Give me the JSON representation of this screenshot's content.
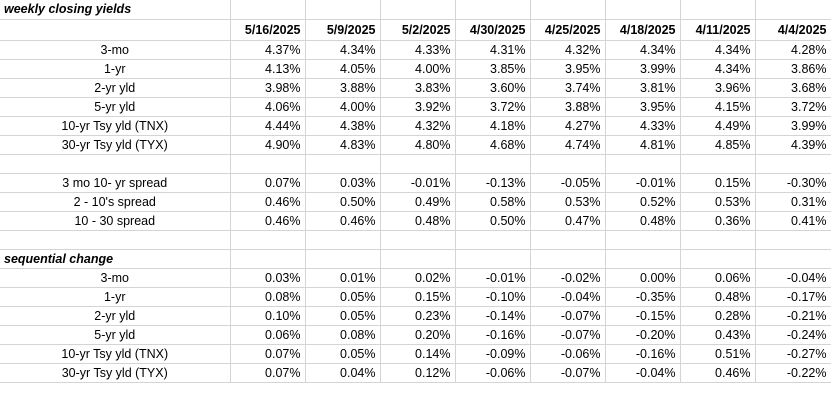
{
  "section1_title": "weekly closing yields",
  "dates": [
    "5/16/2025",
    "5/9/2025",
    "5/2/2025",
    "4/30/2025",
    "4/25/2025",
    "4/18/2025",
    "4/11/2025",
    "4/4/2025"
  ],
  "yields": [
    {
      "label": "3-mo",
      "values": [
        "4.37%",
        "4.34%",
        "4.33%",
        "4.31%",
        "4.32%",
        "4.34%",
        "4.34%",
        "4.28%"
      ]
    },
    {
      "label": "1-yr",
      "values": [
        "4.13%",
        "4.05%",
        "4.00%",
        "3.85%",
        "3.95%",
        "3.99%",
        "4.34%",
        "3.86%"
      ]
    },
    {
      "label": "2-yr yld",
      "values": [
        "3.98%",
        "3.88%",
        "3.83%",
        "3.60%",
        "3.74%",
        "3.81%",
        "3.96%",
        "3.68%"
      ]
    },
    {
      "label": "5-yr yld",
      "values": [
        "4.06%",
        "4.00%",
        "3.92%",
        "3.72%",
        "3.88%",
        "3.95%",
        "4.15%",
        "3.72%"
      ]
    },
    {
      "label": "10-yr Tsy yld (TNX)",
      "values": [
        "4.44%",
        "4.38%",
        "4.32%",
        "4.18%",
        "4.27%",
        "4.33%",
        "4.49%",
        "3.99%"
      ]
    },
    {
      "label": "30-yr Tsy yld (TYX)",
      "values": [
        "4.90%",
        "4.83%",
        "4.80%",
        "4.68%",
        "4.74%",
        "4.81%",
        "4.85%",
        "4.39%"
      ]
    }
  ],
  "spreads": [
    {
      "label": "3 mo 10- yr spread",
      "values": [
        "0.07%",
        "0.03%",
        "-0.01%",
        "-0.13%",
        "-0.05%",
        "-0.01%",
        "0.15%",
        "-0.30%"
      ]
    },
    {
      "label": "2 - 10's spread",
      "values": [
        "0.46%",
        "0.50%",
        "0.49%",
        "0.58%",
        "0.53%",
        "0.52%",
        "0.53%",
        "0.31%"
      ]
    },
    {
      "label": "10 - 30 spread",
      "values": [
        "0.46%",
        "0.46%",
        "0.48%",
        "0.50%",
        "0.47%",
        "0.48%",
        "0.36%",
        "0.41%"
      ]
    }
  ],
  "section2_title": "sequential change",
  "changes": [
    {
      "label": "3-mo",
      "values": [
        "0.03%",
        "0.01%",
        "0.02%",
        "-0.01%",
        "-0.02%",
        "0.00%",
        "0.06%",
        "-0.04%"
      ]
    },
    {
      "label": "1-yr",
      "values": [
        "0.08%",
        "0.05%",
        "0.15%",
        "-0.10%",
        "-0.04%",
        "-0.35%",
        "0.48%",
        "-0.17%"
      ]
    },
    {
      "label": "2-yr yld",
      "values": [
        "0.10%",
        "0.05%",
        "0.23%",
        "-0.14%",
        "-0.07%",
        "-0.15%",
        "0.28%",
        "-0.21%"
      ]
    },
    {
      "label": "5-yr yld",
      "values": [
        "0.06%",
        "0.08%",
        "0.20%",
        "-0.16%",
        "-0.07%",
        "-0.20%",
        "0.43%",
        "-0.24%"
      ]
    },
    {
      "label": "10-yr Tsy yld (TNX)",
      "values": [
        "0.07%",
        "0.05%",
        "0.14%",
        "-0.09%",
        "-0.06%",
        "-0.16%",
        "0.51%",
        "-0.27%"
      ]
    },
    {
      "label": "30-yr Tsy yld (TYX)",
      "values": [
        "0.07%",
        "0.04%",
        "0.12%",
        "-0.06%",
        "-0.07%",
        "-0.04%",
        "0.46%",
        "-0.22%"
      ]
    }
  ]
}
